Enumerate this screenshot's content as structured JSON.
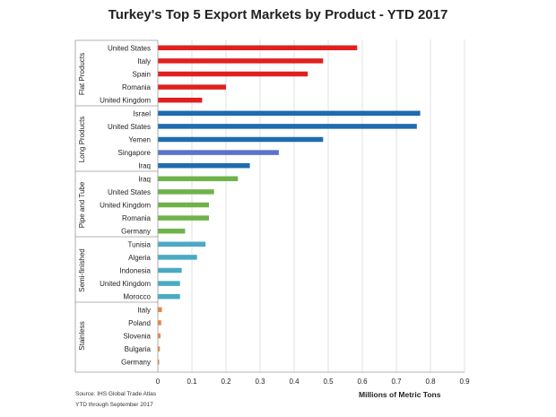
{
  "title": "Turkey's Top 5 Export Markets by Product - YTD 2017",
  "source_line1": "Source: IHS Global Trade Atlas",
  "source_line2": "YTD through September 2017",
  "chart_data": {
    "type": "bar",
    "orientation": "horizontal",
    "title": "Turkey's Top 5 Export Markets by Product - YTD 2017",
    "xlabel": "Millions of Metric Tons",
    "ylabel": "",
    "xlim": [
      0,
      0.9
    ],
    "xticks": [
      0,
      0.1,
      0.2,
      0.3,
      0.4,
      0.5,
      0.6,
      0.7,
      0.8,
      0.9
    ],
    "grid": "vertical",
    "legend": "none",
    "groups": [
      {
        "name": "Flat Products",
        "color": "#e02020",
        "categories": [
          "United States",
          "Italy",
          "Spain",
          "Romania",
          "United Kingdom"
        ],
        "values": [
          0.585,
          0.485,
          0.44,
          0.2,
          0.13
        ]
      },
      {
        "name": "Long Products",
        "color": "#1f6bb0",
        "categories": [
          "Israel",
          "United States",
          "Yemen",
          "Singapore",
          "Iraq"
        ],
        "values": [
          0.77,
          0.76,
          0.485,
          0.355,
          0.27
        ],
        "colors": [
          "#1f6bb0",
          "#1f6bb0",
          "#1f6bb0",
          "#5a73c8",
          "#1f6bb0"
        ]
      },
      {
        "name": "Pipe and Tube",
        "color": "#6fb24a",
        "categories": [
          "Iraq",
          "United States",
          "United Kingdom",
          "Romania",
          "Germany"
        ],
        "values": [
          0.235,
          0.165,
          0.15,
          0.15,
          0.08
        ]
      },
      {
        "name": "Semi-finished",
        "color": "#4aaac4",
        "categories": [
          "Tunisia",
          "Algeria",
          "Indonesia",
          "United Kingdom",
          "Morocco"
        ],
        "values": [
          0.14,
          0.115,
          0.07,
          0.065,
          0.065
        ]
      },
      {
        "name": "Stainless",
        "color": "#e8874a",
        "categories": [
          "Italy",
          "Poland",
          "Slovenia",
          "Bulgaria",
          "Germany"
        ],
        "values": [
          0.012,
          0.01,
          0.008,
          0.006,
          0.004
        ]
      }
    ]
  }
}
